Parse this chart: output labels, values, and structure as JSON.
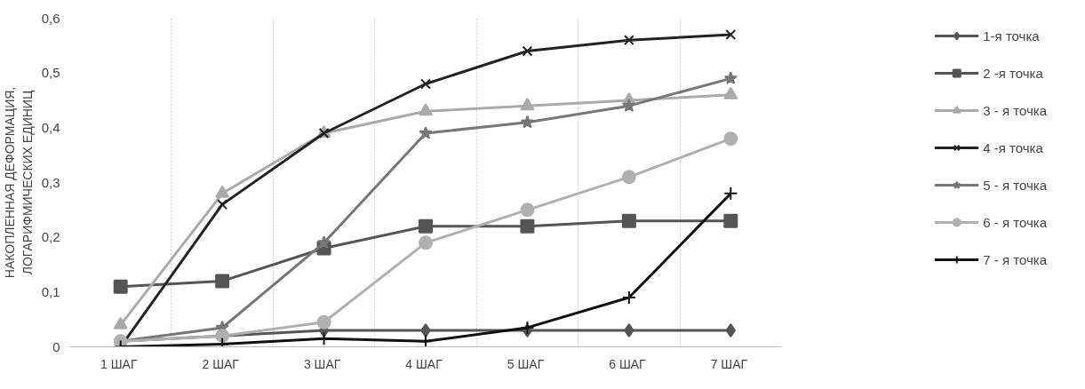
{
  "chart_data": {
    "type": "line",
    "ylabel": "НАКОПЛЕННАЯ ДЕФОРМАЦИЯ,\nЛОГАРИФМИЧЕСКИХ ЕДИНИЦ",
    "categories": [
      "1  ШАГ",
      "2  ШАГ",
      "3  ШАГ",
      "4  ШАГ",
      "5  ШАГ",
      "6  ШАГ",
      "7  ШАГ"
    ],
    "ylim": [
      0,
      0.6
    ],
    "yticks": [
      {
        "value": 0,
        "label": "0"
      },
      {
        "value": 0.1,
        "label": "0,1"
      },
      {
        "value": 0.2,
        "label": "0,2"
      },
      {
        "value": 0.3,
        "label": "0,3"
      },
      {
        "value": 0.4,
        "label": "0,4"
      },
      {
        "value": 0.5,
        "label": "0,5"
      },
      {
        "value": 0.6,
        "label": "0,6"
      }
    ],
    "grid": "x",
    "legend": "right",
    "series": [
      {
        "name": "1-я точка",
        "color": "#555555",
        "marker": "diamond",
        "values": [
          0.01,
          0.02,
          0.03,
          0.03,
          0.03,
          0.03,
          0.03
        ]
      },
      {
        "name": "2 -я точка",
        "color": "#555555",
        "marker": "square",
        "values": [
          0.11,
          0.12,
          0.18,
          0.22,
          0.22,
          0.23,
          0.23
        ]
      },
      {
        "name": "3 - я точка",
        "color": "#aaaaaa",
        "marker": "triangle",
        "values": [
          0.04,
          0.28,
          0.39,
          0.43,
          0.44,
          0.45,
          0.46
        ]
      },
      {
        "name": "4 -я точка",
        "color": "#222222",
        "marker": "x",
        "values": [
          0.0,
          0.26,
          0.39,
          0.48,
          0.54,
          0.56,
          0.57
        ]
      },
      {
        "name": "5 - я точка",
        "color": "#777777",
        "marker": "star",
        "values": [
          0.01,
          0.035,
          0.19,
          0.39,
          0.41,
          0.44,
          0.49
        ]
      },
      {
        "name": "6 - я точка",
        "color": "#b0b0b0",
        "marker": "circle",
        "values": [
          0.01,
          0.02,
          0.045,
          0.19,
          0.25,
          0.31,
          0.38
        ]
      },
      {
        "name": "7 - я точка",
        "color": "#111111",
        "marker": "cross",
        "values": [
          0.0,
          0.005,
          0.015,
          0.01,
          0.035,
          0.09,
          0.28
        ]
      }
    ]
  }
}
